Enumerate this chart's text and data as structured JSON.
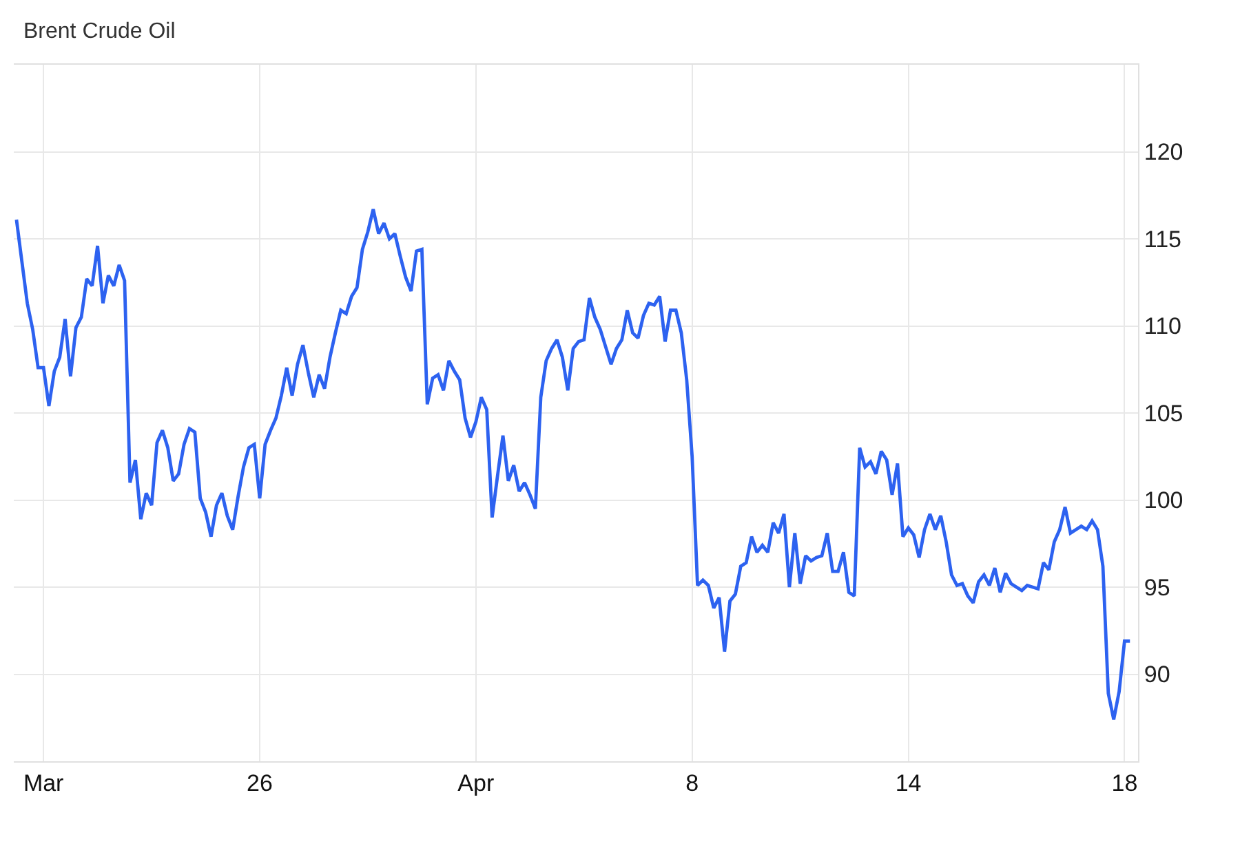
{
  "chart_data": {
    "type": "line",
    "title": "Brent Crude Oil",
    "categories": [
      null,
      null,
      null,
      null,
      null,
      "Mar",
      null,
      null,
      null,
      null,
      null,
      null,
      null,
      null,
      null,
      null,
      null,
      null,
      null,
      null,
      null,
      null,
      null,
      null,
      null,
      null,
      null,
      null,
      null,
      null,
      null,
      null,
      null,
      null,
      null,
      null,
      null,
      null,
      null,
      null,
      null,
      null,
      null,
      null,
      null,
      "26",
      null,
      null,
      null,
      null,
      null,
      null,
      null,
      null,
      null,
      null,
      null,
      null,
      null,
      null,
      null,
      null,
      null,
      null,
      null,
      null,
      null,
      null,
      null,
      null,
      null,
      null,
      null,
      null,
      null,
      null,
      null,
      null,
      null,
      null,
      null,
      null,
      null,
      null,
      null,
      "Apr",
      null,
      null,
      null,
      null,
      null,
      null,
      null,
      null,
      null,
      null,
      null,
      null,
      null,
      null,
      null,
      null,
      null,
      null,
      null,
      null,
      null,
      null,
      null,
      null,
      null,
      null,
      null,
      null,
      null,
      null,
      null,
      null,
      null,
      null,
      null,
      null,
      null,
      null,
      null,
      "8",
      null,
      null,
      null,
      null,
      null,
      null,
      null,
      null,
      null,
      null,
      null,
      null,
      null,
      null,
      null,
      null,
      null,
      null,
      null,
      null,
      null,
      null,
      null,
      null,
      null,
      null,
      null,
      null,
      null,
      null,
      null,
      null,
      null,
      null,
      null,
      null,
      null,
      null,
      null,
      "14",
      null,
      null,
      null,
      null,
      null,
      null,
      null,
      null,
      null,
      null,
      null,
      null,
      null,
      null,
      null,
      null,
      null,
      null,
      null,
      null,
      null,
      null,
      null,
      null,
      null,
      null,
      null,
      null,
      null,
      null,
      null,
      null,
      null,
      null,
      null,
      null,
      null,
      null,
      null,
      "18",
      null,
      null
    ],
    "series": [
      {
        "color": "#2d62f0",
        "values": [
          116.1,
          113.7,
          111.3,
          109.8,
          107.6,
          107.6,
          105.4,
          107.4,
          108.2,
          110.4,
          107.1,
          109.9,
          110.5,
          112.7,
          112.3,
          114.6,
          111.3,
          112.9,
          112.3,
          113.5,
          112.6,
          101.0,
          102.3,
          98.9,
          100.4,
          99.7,
          103.3,
          104.0,
          103.0,
          101.1,
          101.5,
          103.2,
          104.1,
          103.9,
          100.1,
          99.3,
          97.9,
          99.7,
          100.4,
          99.1,
          98.3,
          100.2,
          101.9,
          103.0,
          103.2,
          100.1,
          103.2,
          104.0,
          104.7,
          106.0,
          107.6,
          106.0,
          107.8,
          108.9,
          107.3,
          105.9,
          107.2,
          106.4,
          108.2,
          109.6,
          110.9,
          110.7,
          111.7,
          112.2,
          114.4,
          115.4,
          116.7,
          115.3,
          115.9,
          115.0,
          115.3,
          114.0,
          112.8,
          112.0,
          114.3,
          114.4,
          105.5,
          107.0,
          107.2,
          106.3,
          108.0,
          107.4,
          106.9,
          104.7,
          103.6,
          104.5,
          105.9,
          105.2,
          99.0,
          101.4,
          103.7,
          101.1,
          102.0,
          100.5,
          101.0,
          100.3,
          99.5,
          105.9,
          108.0,
          108.7,
          109.2,
          108.2,
          106.3,
          108.7,
          109.1,
          109.2,
          111.6,
          110.5,
          109.8,
          108.8,
          107.8,
          108.7,
          109.2,
          110.9,
          109.6,
          109.3,
          110.6,
          111.3,
          111.2,
          111.7,
          109.1,
          110.9,
          110.9,
          109.6,
          106.9,
          102.5,
          95.1,
          95.4,
          95.1,
          93.8,
          94.4,
          91.3,
          94.2,
          94.6,
          96.2,
          96.4,
          97.9,
          97.0,
          97.4,
          97.0,
          98.7,
          98.1,
          99.2,
          95.0,
          98.1,
          95.2,
          96.8,
          96.5,
          96.7,
          96.8,
          98.1,
          95.9,
          95.9,
          97.0,
          94.7,
          94.5,
          103.0,
          101.9,
          102.2,
          101.5,
          102.8,
          102.3,
          100.3,
          102.1,
          97.9,
          98.4,
          98.0,
          96.7,
          98.3,
          99.2,
          98.3,
          99.1,
          97.6,
          95.7,
          95.1,
          95.2,
          94.5,
          94.1,
          95.3,
          95.7,
          95.1,
          96.1,
          94.7,
          95.8,
          95.2,
          95.0,
          94.8,
          95.1,
          95.0,
          94.9,
          96.4,
          96.0,
          97.6,
          98.3,
          99.6,
          98.1,
          98.3,
          98.5,
          98.3,
          98.8,
          98.3,
          96.2,
          88.9,
          87.4,
          89.0,
          91.9,
          91.9,
          null
        ]
      }
    ],
    "ylim": [
      85,
      125
    ],
    "yticks": [
      90,
      95,
      100,
      105,
      110,
      115,
      120
    ],
    "grid": true,
    "line_style": "solid"
  }
}
